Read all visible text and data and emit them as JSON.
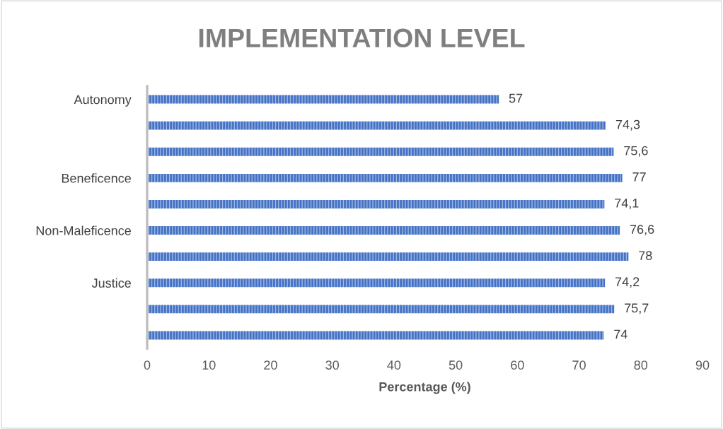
{
  "chart_data": {
    "type": "bar",
    "orientation": "horizontal",
    "title": "IMPLEMENTATION LEVEL",
    "xlabel": "Percentage (%)",
    "categories": [
      "Autonomy",
      null,
      null,
      "Beneficence",
      null,
      "Non-Maleficence",
      null,
      "Justice",
      null,
      null
    ],
    "values": [
      57,
      74.3,
      75.6,
      77,
      74.1,
      76.6,
      78,
      74.2,
      75.7,
      74
    ],
    "value_labels": [
      "57",
      "74,3",
      "75,6",
      "77",
      "74,1",
      "76,6",
      "78",
      "74,2",
      "75,7",
      "74"
    ],
    "color": "#4472c4",
    "xlim": [
      0,
      90
    ],
    "xticks": [
      0,
      10,
      20,
      30,
      40,
      50,
      60,
      70,
      80,
      90
    ],
    "grid": false,
    "legend": false
  }
}
